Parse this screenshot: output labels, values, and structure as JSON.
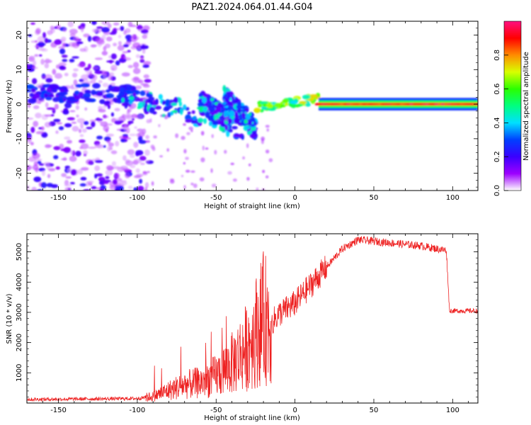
{
  "figure_title": "PAZ1.2024.064.01.44.G04",
  "chart_data": [
    {
      "type": "heatmap",
      "xlabel": "Height of straight line (km)",
      "ylabel": "Frequency (Hz)",
      "xlim": [
        -170,
        116
      ],
      "ylim": [
        -25,
        24
      ],
      "xticks": [
        -150,
        -100,
        -50,
        0,
        50,
        100
      ],
      "yticks": [
        -20,
        -10,
        0,
        10,
        20
      ],
      "grid": false,
      "colorbar": {
        "label": "Normalized spectral amplitude",
        "range": [
          0,
          1
        ],
        "ticks": [
          "0.0",
          "0.2",
          "0.4",
          "0.6",
          "0.8"
        ],
        "colormap": "rainbow",
        "stops": [
          "#ffffff",
          "#9d00ff",
          "#3a00ff",
          "#0040ff",
          "#00e0ff",
          "#00ff80",
          "#2aff00",
          "#d8ff00",
          "#ff8c00",
          "#ff0000",
          "#ff1080"
        ]
      },
      "regions": [
        {
          "x": [
            -170,
            -95
          ],
          "f_center": 0,
          "f_spread": 25,
          "amplitude": 0.15,
          "description": "diffuse noise"
        },
        {
          "x": [
            -110,
            -25
          ],
          "f_trend": [
            3,
            -8
          ],
          "amplitude": 0.45
        },
        {
          "x": [
            -25,
            15
          ],
          "f_trend": [
            -1,
            1.5
          ],
          "amplitude": 0.75
        },
        {
          "x": [
            15,
            116
          ],
          "f_center": 0,
          "amplitude": 0.95
        }
      ]
    },
    {
      "type": "line",
      "xlabel": "Height of straight line (km)",
      "ylabel": "SNR (10 * v/v)",
      "xlim": [
        -170,
        116
      ],
      "ylim": [
        0,
        5600
      ],
      "xticks": [
        -150,
        -100,
        -50,
        0,
        50,
        100
      ],
      "yticks": [
        1000,
        2000,
        3000,
        4000,
        5000
      ],
      "grid": false,
      "line_color": "#ee2222",
      "profile": {
        "x": [
          -170,
          -120,
          -100,
          -90,
          -80,
          -70,
          -60,
          -50,
          -40,
          -30,
          -20,
          -15,
          -10,
          0,
          10,
          20,
          30,
          40,
          50,
          60,
          70,
          80,
          90,
          96,
          98,
          116
        ],
        "y": [
          120,
          140,
          150,
          220,
          420,
          600,
          680,
          900,
          1300,
          1900,
          2800,
          2650,
          2950,
          3300,
          3900,
          4500,
          5100,
          5400,
          5350,
          5300,
          5250,
          5200,
          5100,
          5050,
          3050,
          3050
        ]
      }
    }
  ]
}
